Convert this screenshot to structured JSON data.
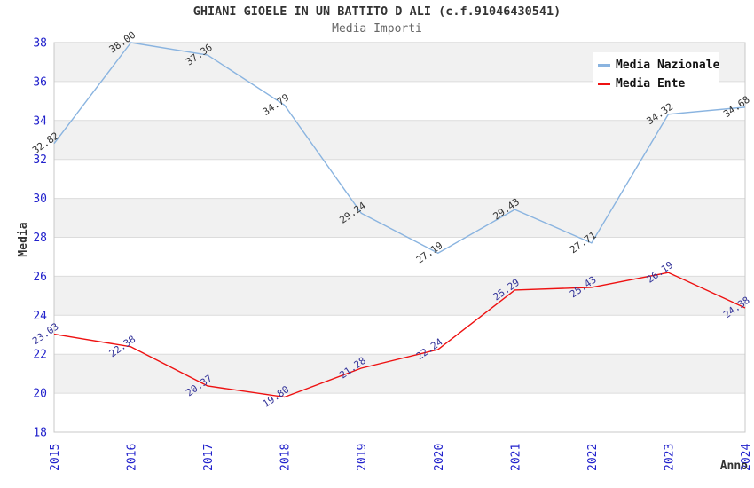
{
  "chart_data": {
    "type": "line",
    "title": "GHIANI GIOELE IN UN BATTITO D ALI (c.f.91046430541)",
    "subtitle": "Media Importi",
    "x": [
      "2015",
      "2016",
      "2017",
      "2018",
      "2019",
      "2020",
      "2021",
      "2022",
      "2023",
      "2024"
    ],
    "series": [
      {
        "name": "Media Nazionale",
        "slug": "media-nazionale",
        "color": "#8ab4e0",
        "label_color": "#333333",
        "values": [
          32.82,
          38.0,
          37.36,
          34.79,
          29.24,
          27.19,
          29.43,
          27.71,
          34.32,
          34.68
        ],
        "labels": [
          "32.82",
          "38.00",
          "37.36",
          "34.79",
          "29.24",
          "27.19",
          "29.43",
          "27.71",
          "34.32",
          "34.68"
        ]
      },
      {
        "name": "Media Ente",
        "slug": "media-ente",
        "color": "#ee1111",
        "label_color": "#333399",
        "values": [
          23.03,
          22.38,
          20.37,
          19.8,
          21.28,
          22.24,
          25.29,
          25.43,
          26.19,
          24.38
        ],
        "labels": [
          "23.03",
          "22.38",
          "20.37",
          "19.80",
          "21.28",
          "22.24",
          "25.29",
          "25.43",
          "26.19",
          "24.38"
        ]
      }
    ],
    "xlabel": "Anno",
    "ylabel": "Media",
    "ylim": [
      18,
      38
    ],
    "ytick_step": 2,
    "yticks": [
      18,
      20,
      22,
      24,
      26,
      28,
      30,
      32,
      34,
      36,
      38
    ],
    "grid": "horizontal-bands-alternating",
    "legend_position": "top-right",
    "colors": {
      "tick": "#2222cc",
      "band": "#f1f1f1",
      "grid": "#dcdcdc",
      "border": "#c8c8c8",
      "title": "#333333",
      "subtitle": "#666666",
      "axis_title": "#333333"
    }
  }
}
